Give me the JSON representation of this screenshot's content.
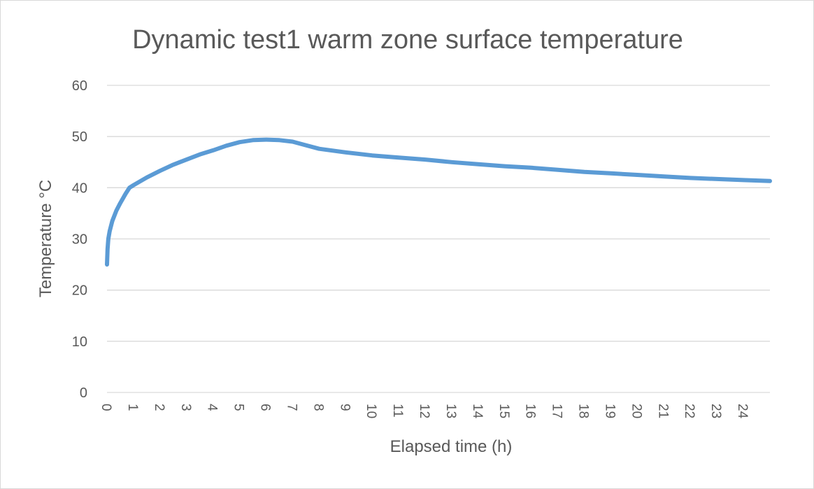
{
  "chart_data": {
    "type": "line",
    "title": "Dynamic test1 warm zone surface temperature",
    "xlabel": "Elapsed time (h)",
    "ylabel": "Temperature °C",
    "xlim": [
      0,
      25
    ],
    "ylim": [
      0,
      60
    ],
    "y_ticks": [
      0,
      10,
      20,
      30,
      40,
      50,
      60
    ],
    "x_ticks": [
      "0",
      "1",
      "2",
      "3",
      "4",
      "5",
      "6",
      "7",
      "8",
      "9",
      "10",
      "11",
      "12",
      "13",
      "14",
      "15",
      "16",
      "17",
      "18",
      "19",
      "20",
      "21",
      "22",
      "23",
      "24"
    ],
    "grid": "horizontal",
    "legend": "none",
    "series": [
      {
        "color": "#5b9bd5",
        "x": [
          0,
          0.02,
          0.05,
          0.1,
          0.2,
          0.35,
          0.5,
          0.7,
          0.85,
          1.0,
          1.5,
          2.0,
          2.5,
          3.0,
          3.5,
          4.0,
          4.5,
          5.0,
          5.5,
          6.0,
          6.5,
          7.0,
          7.5,
          8.0,
          9.0,
          10.0,
          11.0,
          12.0,
          13.0,
          14.0,
          15.0,
          16.0,
          17.0,
          18.0,
          19.0,
          20.0,
          21.0,
          22.0,
          23.0,
          24.0,
          25.0
        ],
        "y": [
          25.0,
          28.0,
          30.0,
          31.5,
          33.5,
          35.5,
          37.0,
          38.8,
          40.0,
          40.5,
          42.0,
          43.3,
          44.5,
          45.5,
          46.5,
          47.3,
          48.2,
          48.9,
          49.3,
          49.4,
          49.3,
          49.0,
          48.3,
          47.6,
          46.9,
          46.3,
          45.9,
          45.5,
          45.0,
          44.6,
          44.2,
          43.9,
          43.5,
          43.1,
          42.8,
          42.5,
          42.2,
          41.9,
          41.7,
          41.5,
          41.3
        ]
      }
    ]
  }
}
